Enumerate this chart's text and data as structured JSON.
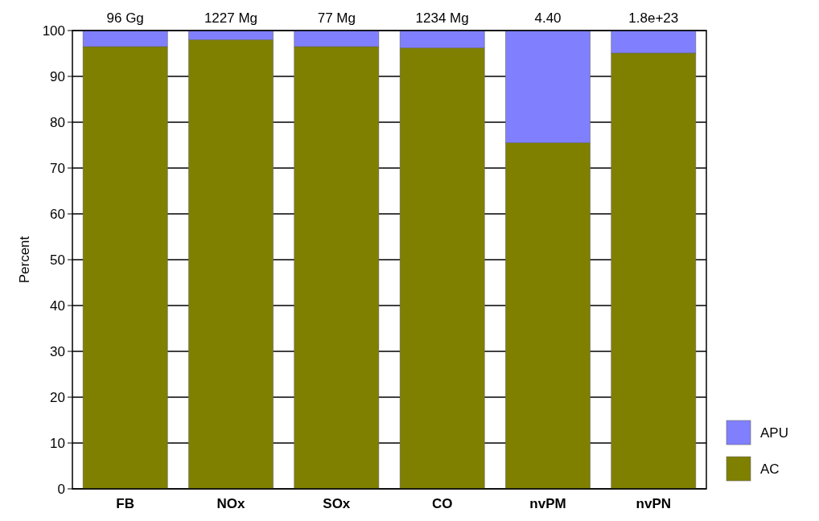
{
  "chart_data": {
    "type": "bar",
    "stacked": true,
    "ylabel": "Percent",
    "categories": [
      "FB",
      "NOx",
      "SOx",
      "CO",
      "nvPM",
      "nvPN"
    ],
    "series": [
      {
        "name": "AC",
        "color": "#808000",
        "values": [
          96.5,
          98.0,
          96.5,
          96.2,
          75.5,
          95.1
        ]
      },
      {
        "name": "APU",
        "color": "#8080ff",
        "values": [
          3.5,
          2.0,
          3.5,
          3.8,
          24.5,
          4.9
        ]
      }
    ],
    "ylim": [
      0,
      100
    ],
    "yticks": [
      0,
      10,
      20,
      30,
      40,
      50,
      60,
      70,
      80,
      90,
      100
    ],
    "grid": "y",
    "legend": "bottom right",
    "annotations": [
      {
        "text": "96 Gg",
        "x": "FB",
        "y": 100
      },
      {
        "text": "1227 Mg",
        "x": "NOx",
        "y": 100
      },
      {
        "text": "77 Mg",
        "x": "SOx",
        "y": 100
      },
      {
        "text": "1234 Mg",
        "x": "CO",
        "y": 100
      },
      {
        "text": "4.40",
        "x": "nvPM",
        "y": 100
      },
      {
        "text": "1.8e+23",
        "x": "nvPN",
        "y": 100
      }
    ]
  }
}
